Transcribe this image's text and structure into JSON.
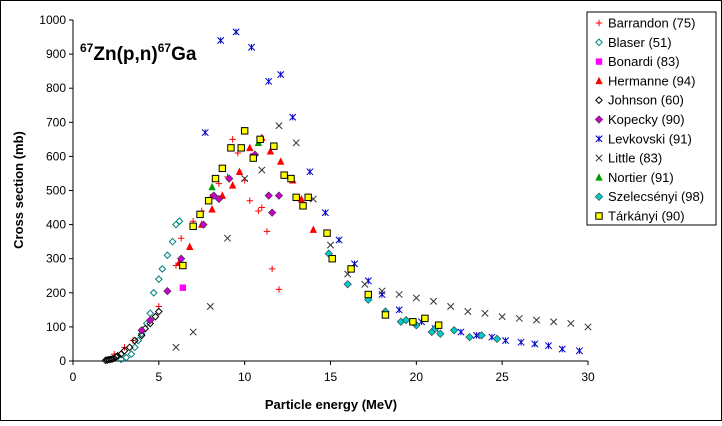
{
  "chart_data": {
    "type": "scatter",
    "title_parts": {
      "mass_left": "67",
      "reaction": "Zn(p,n)",
      "mass_right": "67",
      "product": "Ga"
    },
    "xlabel": "Particle energy (MeV)",
    "ylabel": "Cross section (mb)",
    "xlim": [
      0,
      30
    ],
    "ylim": [
      0,
      1000
    ],
    "x_ticks": [
      0,
      5,
      10,
      15,
      20,
      25,
      30
    ],
    "y_ticks": [
      0,
      100,
      200,
      300,
      400,
      500,
      600,
      700,
      800,
      900,
      1000
    ],
    "grid": false,
    "legend_position": "right",
    "series": [
      {
        "name": "Barrandon (75)",
        "marker": "plus",
        "color": "#ff0000",
        "points": [
          [
            2.4,
            20
          ],
          [
            3,
            40
          ],
          [
            3.5,
            60
          ],
          [
            4,
            90
          ],
          [
            4.5,
            120
          ],
          [
            5,
            160
          ],
          [
            5.5,
            205
          ],
          [
            6,
            280
          ],
          [
            6.3,
            360
          ],
          [
            7,
            410
          ],
          [
            7.5,
            440
          ],
          [
            8,
            480
          ],
          [
            8.5,
            520
          ],
          [
            9,
            540
          ],
          [
            9.3,
            650
          ],
          [
            9.6,
            610
          ],
          [
            10,
            530
          ],
          [
            10.3,
            470
          ],
          [
            10.8,
            440
          ],
          [
            11,
            450
          ],
          [
            11.3,
            380
          ],
          [
            11.6,
            270
          ],
          [
            12,
            210
          ]
        ]
      },
      {
        "name": "Blaser (51)",
        "marker": "diamond-open",
        "color": "#008080",
        "points": [
          [
            2.8,
            5
          ],
          [
            3.1,
            10
          ],
          [
            3.4,
            20
          ],
          [
            3.6,
            40
          ],
          [
            3.8,
            60
          ],
          [
            4,
            80
          ],
          [
            4.3,
            110
          ],
          [
            4.5,
            140
          ],
          [
            4.7,
            200
          ],
          [
            5,
            240
          ],
          [
            5.2,
            270
          ],
          [
            5.5,
            310
          ],
          [
            5.8,
            350
          ],
          [
            6,
            400
          ],
          [
            6.2,
            410
          ]
        ]
      },
      {
        "name": "Bonardi (83)",
        "marker": "square-filled",
        "color": "#ff00ff",
        "points": [
          [
            6.4,
            215
          ],
          [
            10.5,
            600
          ]
        ]
      },
      {
        "name": "Hermanne (94)",
        "marker": "triangle-filled",
        "color": "#ff0000",
        "points": [
          [
            6.2,
            290
          ],
          [
            6.8,
            335
          ],
          [
            7.5,
            400
          ],
          [
            8.1,
            445
          ],
          [
            8.7,
            485
          ],
          [
            9.3,
            515
          ],
          [
            9.7,
            555
          ],
          [
            10.3,
            625
          ],
          [
            11,
            655
          ],
          [
            11.5,
            615
          ],
          [
            12.1,
            585
          ],
          [
            12.8,
            530
          ],
          [
            13.3,
            475
          ],
          [
            14,
            385
          ]
        ]
      },
      {
        "name": "Johnson (60)",
        "marker": "diamond-open",
        "color": "#000000",
        "points": [
          [
            1.9,
            2
          ],
          [
            2,
            3
          ],
          [
            2.1,
            4
          ],
          [
            2.2,
            5
          ],
          [
            2.3,
            6
          ],
          [
            2.4,
            8
          ],
          [
            2.5,
            12
          ],
          [
            2.6,
            15
          ],
          [
            2.8,
            20
          ],
          [
            3,
            30
          ],
          [
            3.3,
            40
          ],
          [
            3.6,
            60
          ],
          [
            4,
            75
          ],
          [
            4.2,
            95
          ],
          [
            4.5,
            110
          ],
          [
            4.8,
            130
          ],
          [
            5,
            145
          ]
        ]
      },
      {
        "name": "Kopecky (90)",
        "marker": "diamond-filled",
        "color": "#cc00cc",
        "points": [
          [
            4,
            90
          ],
          [
            4.5,
            120
          ],
          [
            5.5,
            205
          ],
          [
            6.3,
            300
          ],
          [
            7.6,
            400
          ],
          [
            8.2,
            485
          ],
          [
            8.5,
            475
          ],
          [
            9.1,
            535
          ],
          [
            10.6,
            605
          ],
          [
            11.4,
            485
          ],
          [
            11.6,
            435
          ],
          [
            12,
            485
          ]
        ]
      },
      {
        "name": "Levkovski (91)",
        "marker": "asterisk",
        "color": "#0000cc",
        "points": [
          [
            7.7,
            670
          ],
          [
            8.6,
            940
          ],
          [
            9.5,
            965
          ],
          [
            10.4,
            920
          ],
          [
            11.4,
            820
          ],
          [
            12.1,
            840
          ],
          [
            12.8,
            715
          ],
          [
            13.8,
            555
          ],
          [
            14.7,
            435
          ],
          [
            15.5,
            355
          ],
          [
            16.4,
            285
          ],
          [
            17.2,
            235
          ],
          [
            18,
            195
          ],
          [
            19,
            150
          ],
          [
            20.3,
            115
          ],
          [
            21.1,
            95
          ],
          [
            22.6,
            85
          ],
          [
            23.5,
            75
          ],
          [
            24.4,
            70
          ],
          [
            25.2,
            60
          ],
          [
            26.1,
            55
          ],
          [
            26.9,
            50
          ],
          [
            27.7,
            45
          ],
          [
            28.5,
            35
          ],
          [
            29.5,
            30
          ]
        ]
      },
      {
        "name": "Little (83)",
        "marker": "x",
        "color": "#333333",
        "points": [
          [
            6,
            40
          ],
          [
            7,
            85
          ],
          [
            8,
            160
          ],
          [
            9,
            360
          ],
          [
            10,
            535
          ],
          [
            11,
            560
          ],
          [
            12,
            690
          ],
          [
            13,
            640
          ],
          [
            14,
            475
          ],
          [
            15,
            340
          ],
          [
            16,
            255
          ],
          [
            17,
            225
          ],
          [
            18,
            205
          ],
          [
            19,
            195
          ],
          [
            20,
            185
          ],
          [
            21,
            175
          ],
          [
            22,
            160
          ],
          [
            23,
            145
          ],
          [
            24,
            140
          ],
          [
            25,
            130
          ],
          [
            26,
            125
          ],
          [
            27,
            120
          ],
          [
            28,
            115
          ],
          [
            29,
            110
          ],
          [
            30,
            100
          ]
        ]
      },
      {
        "name": "Nortier (91)",
        "marker": "triangle-filled",
        "color": "#009900",
        "points": [
          [
            8.1,
            510
          ],
          [
            10.8,
            640
          ]
        ]
      },
      {
        "name": "Szelecsényi (98)",
        "marker": "diamond-filled",
        "color": "#00cccc",
        "points": [
          [
            14.9,
            315
          ],
          [
            16,
            225
          ],
          [
            17.2,
            180
          ],
          [
            18.2,
            145
          ],
          [
            19.1,
            115
          ],
          [
            19.4,
            120
          ],
          [
            20,
            105
          ],
          [
            20.9,
            85
          ],
          [
            21.1,
            95
          ],
          [
            21.4,
            80
          ],
          [
            22.2,
            90
          ],
          [
            23.1,
            70
          ],
          [
            23.8,
            75
          ],
          [
            24.7,
            65
          ]
        ]
      },
      {
        "name": "Tárkányi (90)",
        "marker": "square-open",
        "color": "#000000",
        "points": [
          [
            6.4,
            280
          ],
          [
            7,
            395
          ],
          [
            7.4,
            430
          ],
          [
            7.9,
            470
          ],
          [
            8.3,
            535
          ],
          [
            8.7,
            565
          ],
          [
            9.2,
            625
          ],
          [
            9.8,
            625
          ],
          [
            10,
            675
          ],
          [
            10.5,
            595
          ],
          [
            10.9,
            650
          ],
          [
            11.7,
            630
          ],
          [
            12.3,
            545
          ],
          [
            12.7,
            535
          ],
          [
            13,
            480
          ],
          [
            13.4,
            455
          ],
          [
            13.7,
            480
          ],
          [
            14.8,
            375
          ],
          [
            15.1,
            300
          ],
          [
            16.2,
            270
          ],
          [
            17.2,
            195
          ],
          [
            18.2,
            135
          ],
          [
            19.8,
            115
          ],
          [
            20.5,
            125
          ],
          [
            21.3,
            105
          ]
        ]
      }
    ]
  }
}
